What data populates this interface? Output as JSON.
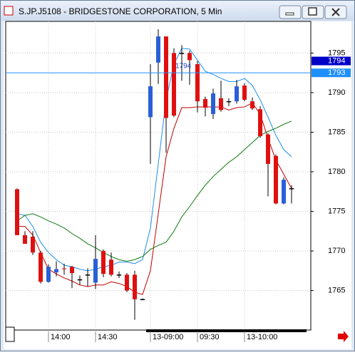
{
  "window_title": "S.JP.J5108 - BRIDGESTONE CORPORATION, 5 Min",
  "chart_data": {
    "type": "candlestick",
    "categories": [
      null,
      null,
      null,
      null,
      "14:00",
      null,
      null,
      null,
      null,
      null,
      "14:30",
      null,
      null,
      null,
      null,
      null,
      null,
      "13-09:00",
      null,
      null,
      null,
      null,
      null,
      "09:30",
      null,
      null,
      null,
      null,
      null,
      "13-10:00",
      null,
      null,
      null,
      null,
      null,
      null
    ],
    "open": [
      1777.8,
      1772.0,
      1771.8,
      1769.8,
      1766.1,
      1767.3,
      1767.8,
      1768.0,
      1766.4,
      1767.0,
      1766.0,
      1770.0,
      1768.9,
      1767.0,
      1767.0,
      1767.0,
      1763.9,
      1786.9,
      1793.8,
      1797.1,
      1795.0,
      1795.0,
      1795.0,
      1793.6,
      1789.2,
      1787.3,
      1789.3,
      1788.9,
      1788.9,
      1790.9,
      1788.9,
      1787.9,
      1784.7,
      1782.0,
      1776.0,
      1777.9
    ],
    "high": [
      1777.9,
      1772.5,
      1772.5,
      1770.0,
      1768.3,
      1768.7,
      1768.4,
      1768.1,
      1766.9,
      1767.8,
      1772.0,
      1770.2,
      1769.8,
      1767.4,
      1767.2,
      1767.5,
      1764.0,
      1793.6,
      1798.0,
      1797.1,
      1795.6,
      1796.0,
      1795.3,
      1794.0,
      1789.5,
      1790.5,
      1791.5,
      1789.3,
      1791.6,
      1791.2,
      1789.4,
      1788.3,
      1784.9,
      1782.2,
      1779.3,
      1778.3
    ],
    "low": [
      1772.0,
      1770.9,
      1769.5,
      1765.9,
      1766.0,
      1766.8,
      1767.0,
      1765.3,
      1765.7,
      1765.5,
      1765.2,
      1766.7,
      1766.8,
      1766.6,
      1764.8,
      1761.3,
      1763.8,
      1781.0,
      1791.1,
      1782.4,
      1786.9,
      1791.5,
      1791.0,
      1787.5,
      1787.0,
      1786.7,
      1787.6,
      1788.3,
      1788.6,
      1788.9,
      1787.8,
      1784.3,
      1776.9,
      1775.9,
      1775.9,
      1776.0
    ],
    "close": [
      1772.0,
      1770.9,
      1769.8,
      1766.1,
      1768.0,
      1767.7,
      1767.7,
      1767.2,
      1766.4,
      1767.0,
      1769.0,
      1767.1,
      1767.0,
      1767.0,
      1765.0,
      1763.9,
      1763.9,
      1790.8,
      1797.1,
      1786.8,
      1787.1,
      1795.0,
      1794.1,
      1788.9,
      1788.1,
      1789.9,
      1787.8,
      1788.9,
      1790.8,
      1789.1,
      1788.0,
      1784.5,
      1781.0,
      1776.0,
      1779.0,
      1777.9
    ],
    "up_color": "#2a5fd8",
    "down_color": "#e01010",
    "lines": [
      {
        "color": "#1e8fe8",
        "values": [
          1774.7,
          1774.5,
          1773.1,
          1771.1,
          1769.8,
          1768.9,
          1768.2,
          1768.0,
          1767.7,
          1767.5,
          1767.7,
          1768.0,
          1768.2,
          1768.6,
          1768.6,
          1768.4,
          1768.9,
          1772.9,
          1781.0,
          1789.1,
          1793.6,
          1795.6,
          1795.5,
          1794.1,
          1792.7,
          1792.3,
          1791.8,
          1791.4,
          1791.4,
          1791.8,
          1790.9,
          1789.1,
          1786.9,
          1784.6,
          1782.8,
          1781.9
        ]
      },
      {
        "color": "#c00000",
        "values": [
          1773.1,
          1773.1,
          1772.0,
          1769.8,
          1767.7,
          1767.1,
          1766.6,
          1766.2,
          1765.7,
          1765.5,
          1765.7,
          1765.7,
          1766.1,
          1765.9,
          1765.5,
          1764.8,
          1764.5,
          1767.5,
          1774.7,
          1781.9,
          1785.5,
          1788.1,
          1788.1,
          1788.2,
          1788.2,
          1788.2,
          1788.2,
          1787.8,
          1788.1,
          1788.2,
          1788.7,
          1787.3,
          1784.2,
          1781.5,
          1779.7,
          1777.9
        ]
      },
      {
        "color": "#107a10",
        "values": [
          1773.8,
          1774.5,
          1774.7,
          1774.3,
          1773.8,
          1773.4,
          1772.9,
          1772.2,
          1771.6,
          1770.9,
          1770.4,
          1769.8,
          1769.3,
          1768.9,
          1768.7,
          1768.9,
          1769.3,
          1770.2,
          1770.7,
          1771.1,
          1772.5,
          1774.3,
          1775.6,
          1777.0,
          1778.3,
          1779.4,
          1780.3,
          1781.2,
          1781.9,
          1782.8,
          1783.7,
          1784.6,
          1785.1,
          1785.5,
          1786.0,
          1786.4
        ]
      }
    ],
    "price_levels": [
      {
        "value": 1794,
        "color": "#0000c8",
        "line": false
      },
      {
        "value": {
          "value": 1792.5,
          "label": "1793"
        },
        "color": "#1e90ff",
        "line": true
      }
    ],
    "annotations": [
      {
        "text": "1794",
        "color": "#2040d0"
      }
    ],
    "ylim": [
      1760.1,
      1799.0
    ],
    "yticks": [
      1765,
      1770,
      1775,
      1780,
      1785,
      1790,
      1795
    ],
    "grid": true
  }
}
